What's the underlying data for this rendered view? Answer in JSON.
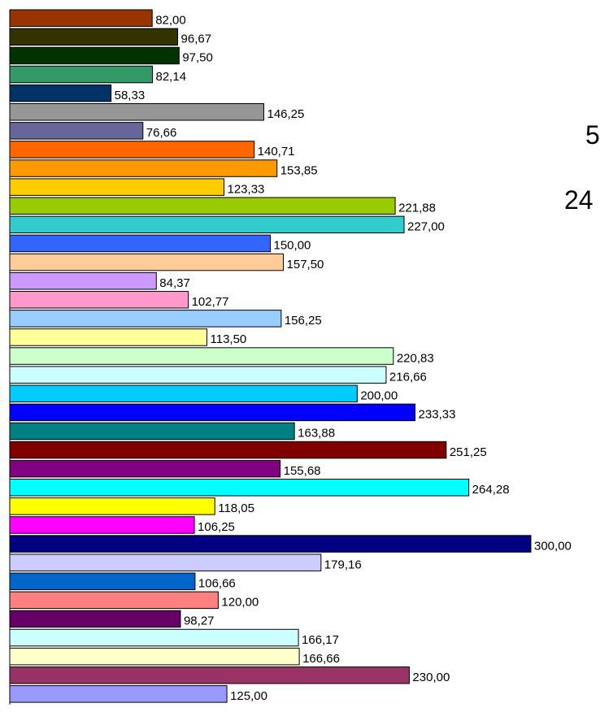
{
  "chart_data": {
    "type": "bar",
    "orientation": "horizontal",
    "title": "",
    "xlabel": "",
    "ylabel": "",
    "xlim": [
      0,
      300
    ],
    "grid": false,
    "legend": "none",
    "values": [
      82.0,
      96.67,
      97.5,
      82.14,
      58.33,
      146.25,
      76.66,
      140.71,
      153.85,
      123.33,
      221.88,
      227.0,
      150.0,
      157.5,
      84.37,
      102.77,
      156.25,
      113.5,
      220.83,
      216.66,
      200.0,
      233.33,
      163.88,
      251.25,
      155.68,
      264.28,
      118.05,
      106.25,
      300.0,
      179.16,
      106.66,
      120.0,
      98.27,
      166.17,
      166.66,
      230.0,
      125.0
    ],
    "labels": [
      "82,00",
      "96,67",
      "97,50",
      "82,14",
      "58,33",
      "146,25",
      "76,66",
      "140,71",
      "153,85",
      "123,33",
      "221,88",
      "227,00",
      "150,00",
      "157,50",
      "84,37",
      "102,77",
      "156,25",
      "113,50",
      "220,83",
      "216,66",
      "200,00",
      "233,33",
      "163,88",
      "251,25",
      "155,68",
      "264,28",
      "118,05",
      "106,25",
      "300,00",
      "179,16",
      "106,66",
      "120,00",
      "98,27",
      "166,17",
      "166,66",
      "230,00",
      "125,00"
    ],
    "colors": [
      "#993300",
      "#333300",
      "#003300",
      "#339966",
      "#003366",
      "#969696",
      "#666699",
      "#FF6600",
      "#FF9900",
      "#FFCC00",
      "#99CC00",
      "#33CCCC",
      "#3366FF",
      "#FFCC99",
      "#CC99FF",
      "#FF99CC",
      "#99CCFF",
      "#FFFF99",
      "#CCFFCC",
      "#CCFFFF",
      "#00CCFF",
      "#0000FF",
      "#008080",
      "#800000",
      "#800080",
      "#00FFFF",
      "#FFFF00",
      "#FF00FF",
      "#000080",
      "#CCCCFF",
      "#0066CC",
      "#FF8080",
      "#660066",
      "#CCFFFF",
      "#FFFFCC",
      "#993366",
      "#9999FF"
    ]
  },
  "side_text": [
    "5",
    "24"
  ]
}
